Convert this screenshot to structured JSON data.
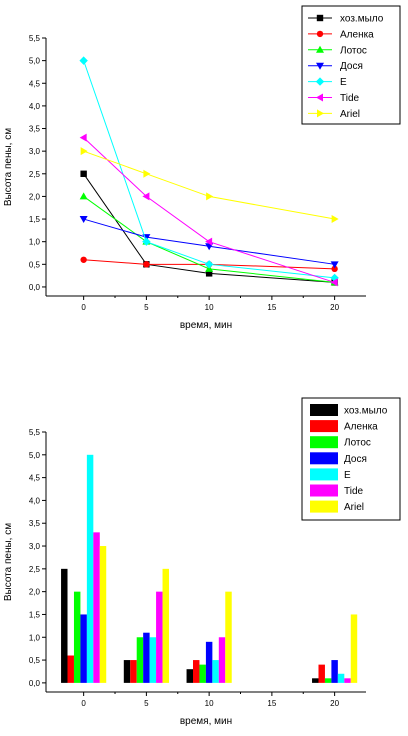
{
  "chart_data": [
    {
      "type": "line",
      "xlabel": "время, мин",
      "ylabel": "Высота пены, см",
      "xlim": [
        -3,
        22.5
      ],
      "ylim": [
        -0.2,
        5.5
      ],
      "xticks": [
        0,
        5,
        10,
        15,
        20
      ],
      "yticks": [
        0.0,
        0.5,
        1.0,
        1.5,
        2.0,
        2.5,
        3.0,
        3.5,
        4.0,
        4.5,
        5.0,
        5.5
      ],
      "legend_position": "top-right",
      "x": [
        0,
        5,
        10,
        20
      ],
      "series": [
        {
          "name": "хоз.мыло",
          "color": "#000000",
          "marker": "square",
          "values": [
            2.5,
            0.5,
            0.3,
            0.1
          ]
        },
        {
          "name": "Аленка",
          "color": "#ff0000",
          "marker": "circle",
          "values": [
            0.6,
            0.5,
            0.5,
            0.4
          ]
        },
        {
          "name": "Лотос",
          "color": "#00ff00",
          "marker": "triangle-up",
          "values": [
            2.0,
            1.0,
            0.4,
            0.1
          ]
        },
        {
          "name": "Дося",
          "color": "#0000ff",
          "marker": "triangle-down",
          "values": [
            1.5,
            1.1,
            0.9,
            0.5
          ]
        },
        {
          "name": "E",
          "color": "#00ffff",
          "marker": "diamond",
          "values": [
            5.0,
            1.0,
            0.5,
            0.2
          ]
        },
        {
          "name": "Tide",
          "color": "#ff00ff",
          "marker": "triangle-left",
          "values": [
            3.3,
            2.0,
            1.0,
            0.1
          ]
        },
        {
          "name": "Ariel",
          "color": "#ffff00",
          "marker": "triangle-right",
          "values": [
            3.0,
            2.5,
            2.0,
            1.5
          ]
        }
      ]
    },
    {
      "type": "bar",
      "xlabel": "время, мин",
      "ylabel": "Высота пены, см",
      "xlim": [
        -3,
        22.5
      ],
      "ylim": [
        -0.2,
        5.5
      ],
      "xticks": [
        0,
        5,
        10,
        15,
        20
      ],
      "yticks": [
        0.0,
        0.5,
        1.0,
        1.5,
        2.0,
        2.5,
        3.0,
        3.5,
        4.0,
        4.5,
        5.0,
        5.5
      ],
      "legend_position": "top-right",
      "x": [
        0,
        5,
        10,
        20
      ],
      "series": [
        {
          "name": "хоз.мыло",
          "color": "#000000",
          "values": [
            2.5,
            0.5,
            0.3,
            0.1
          ]
        },
        {
          "name": "Аленка",
          "color": "#ff0000",
          "values": [
            0.6,
            0.5,
            0.5,
            0.4
          ]
        },
        {
          "name": "Лотос",
          "color": "#00ff00",
          "values": [
            2.0,
            1.0,
            0.4,
            0.1
          ]
        },
        {
          "name": "Дося",
          "color": "#0000ff",
          "values": [
            1.5,
            1.1,
            0.9,
            0.5
          ]
        },
        {
          "name": "E",
          "color": "#00ffff",
          "values": [
            5.0,
            1.0,
            0.5,
            0.2
          ]
        },
        {
          "name": "Tide",
          "color": "#ff00ff",
          "values": [
            3.3,
            2.0,
            1.0,
            0.1
          ]
        },
        {
          "name": "Ariel",
          "color": "#ffff00",
          "values": [
            3.0,
            2.5,
            2.0,
            1.5
          ]
        }
      ]
    }
  ]
}
